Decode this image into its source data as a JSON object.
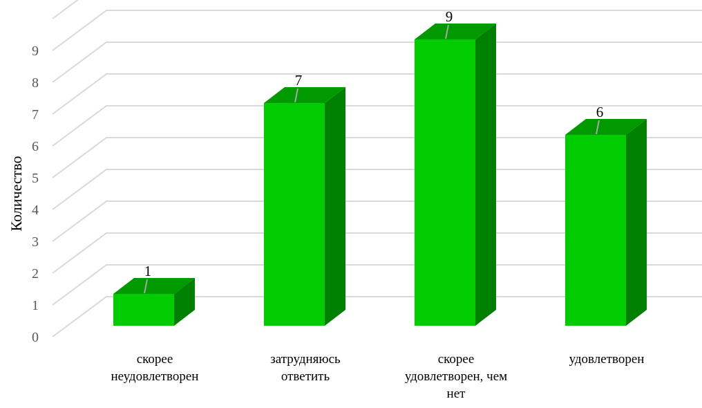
{
  "chart_data": {
    "type": "bar",
    "title": "",
    "xlabel": "",
    "ylabel": "Количество",
    "ylim": [
      0,
      10
    ],
    "y_ticks": [
      0,
      1,
      2,
      3,
      4,
      5,
      6,
      7,
      8,
      9
    ],
    "grid": true,
    "three_d": true,
    "categories": [
      [
        "скорее",
        "неудовлетворен"
      ],
      [
        "затрудняюсь",
        "ответить"
      ],
      [
        "скорее",
        "удовлетворен, чем",
        "нет"
      ],
      [
        "удовлетворен"
      ]
    ],
    "values": [
      1,
      7,
      9,
      6
    ],
    "data_labels": [
      "1",
      "7",
      "9",
      "6"
    ]
  },
  "colors": {
    "bar_front": "#00CC00",
    "bar_top": "#009900",
    "bar_side": "#008000",
    "grid": "#D9D9D9",
    "leader": "#A6A6A6"
  }
}
